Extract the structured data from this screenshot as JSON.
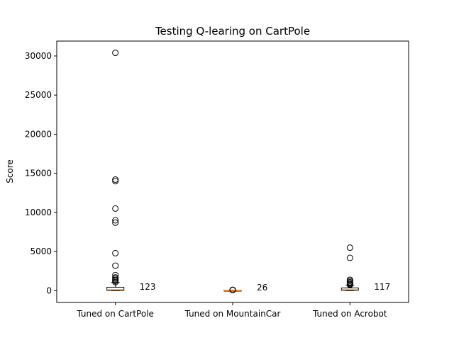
{
  "chart_data": {
    "type": "box",
    "title": "Testing Q-learing on CartPole",
    "xlabel": "",
    "ylabel": "Score",
    "ylim": [
      -1500,
      31900
    ],
    "yticks": [
      0,
      5000,
      10000,
      15000,
      20000,
      25000,
      30000
    ],
    "categories": [
      "Tuned on CartPole",
      "Tuned on MountainCar",
      "Tuned on Acrobot"
    ],
    "boxes": [
      {
        "q1": 30,
        "median": 123,
        "q3": 450,
        "whisker_low": 9,
        "whisker_high": 1050,
        "outliers": [
          1100,
          1250,
          1400,
          1550,
          1700,
          2000,
          3200,
          4800,
          8700,
          9000,
          10500,
          14000,
          14200,
          30400
        ],
        "annotation": "123"
      },
      {
        "q1": 15,
        "median": 26,
        "q3": 40,
        "whisker_low": 5,
        "whisker_high": 60,
        "outliers": [
          80,
          100,
          120
        ],
        "annotation": "26"
      },
      {
        "q1": 40,
        "median": 117,
        "q3": 350,
        "whisker_low": 5,
        "whisker_high": 700,
        "outliers": [
          750,
          850,
          950,
          1100,
          1250,
          1400,
          4200,
          5500
        ],
        "annotation": "117"
      }
    ],
    "colors": {
      "median": "#ff7f0e",
      "box": "#000000",
      "background": "#ffffff"
    },
    "grid": false,
    "legend": "none"
  }
}
